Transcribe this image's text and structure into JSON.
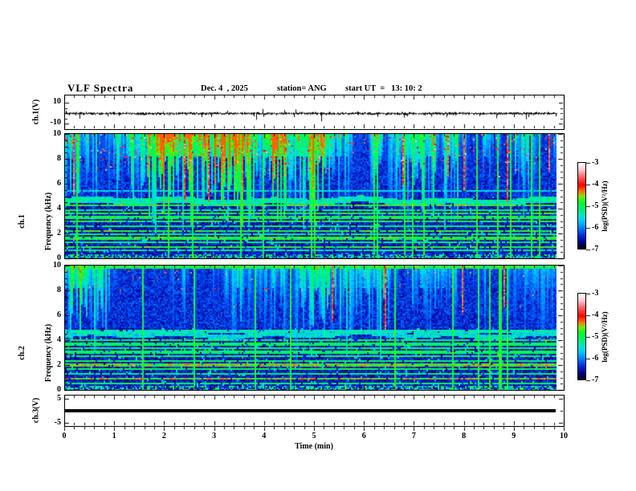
{
  "figure": {
    "bg": "#ffffff",
    "frame_color": "#000000"
  },
  "header": {
    "title": "VLF Spectra",
    "date": "Dec. 4  , 2025",
    "station": "station= ANG",
    "start_ut": "start UT  =   13: 10: 2"
  },
  "x_axis": {
    "label": "Time (min)",
    "min": 0,
    "max": 10,
    "major_ticks": [
      "0",
      "1",
      "2",
      "3",
      "4",
      "5",
      "6",
      "7",
      "8",
      "9",
      "10"
    ],
    "minor_step_min": 0.2,
    "data_end_min": 9.85
  },
  "panels": {
    "ch1_wave": {
      "ylabel": "ch.1(V)",
      "ymax_label": "10",
      "ymin_label": "-10",
      "ymin": -10,
      "ymax": 10
    },
    "spec1": {
      "ylabel_channel": "ch.1",
      "ylabel_axis": "Frequency (kHz)",
      "ytick_labels": [
        "10",
        "8",
        "6",
        "4",
        "2",
        "0"
      ],
      "ytick_values": [
        10,
        8,
        6,
        4,
        2,
        0
      ],
      "ymin": 0,
      "ymax": 10
    },
    "spec2": {
      "ylabel_channel": "ch.2",
      "ylabel_axis": "Frequency (kHz)",
      "ytick_labels": [
        "10",
        "8",
        "6",
        "4",
        "2",
        "0"
      ],
      "ytick_values": [
        10,
        8,
        6,
        4,
        2,
        0
      ],
      "ymin": 0,
      "ymax": 10
    },
    "ch3_wave": {
      "ylabel": "ch.3(V)",
      "ymax_label": "5",
      "ymin_label": "-5",
      "ymin": -5,
      "ymax": 5
    }
  },
  "colorbar": {
    "label": "log(PSD)(V²/Hz)",
    "tick_labels": [
      "-3",
      "-4",
      "-5",
      "-6",
      "-7"
    ],
    "max": -3,
    "min": -7,
    "stops": [
      [
        0,
        "#000010"
      ],
      [
        0.08,
        "#000090"
      ],
      [
        0.16,
        "#0030e0"
      ],
      [
        0.24,
        "#0080ff"
      ],
      [
        0.32,
        "#00c8ff"
      ],
      [
        0.38,
        "#00e8d0"
      ],
      [
        0.44,
        "#00f080"
      ],
      [
        0.54,
        "#00ff30"
      ],
      [
        0.61,
        "#80e800"
      ],
      [
        0.67,
        "#ff7000"
      ],
      [
        0.74,
        "#ff0000"
      ],
      [
        0.84,
        "#ff6868"
      ],
      [
        0.92,
        "#ffc8d8"
      ],
      [
        1,
        "#ffffff"
      ]
    ]
  },
  "chart_data": [
    {
      "type": "line",
      "name": "ch1_waveform",
      "xlabel": "Time (min)",
      "ylabel": "ch.1(V)",
      "xlim": [
        0,
        10
      ],
      "ylim": [
        -10,
        10
      ],
      "description": "broadband noise centered on 0 V, band about ±1.5 V, intermittent negative spikes",
      "seed": 4217,
      "noise_band_V": 1.5,
      "spikes": [
        {
          "t_min": 0.3,
          "v_V": -5
        },
        {
          "t_min": 2.95,
          "v_V": -3.5
        },
        {
          "t_min": 3.85,
          "v_V": -6
        },
        {
          "t_min": 4.6,
          "v_V": -3.5
        },
        {
          "t_min": 5.15,
          "v_V": -7.5
        },
        {
          "t_min": 7.35,
          "v_V": -3
        },
        {
          "t_min": 8.65,
          "v_V": -4.5
        },
        {
          "t_min": 9.0,
          "v_V": -3.5
        },
        {
          "t_min": 9.25,
          "v_V": -5.5
        }
      ]
    },
    {
      "type": "heatmap",
      "name": "ch1_spectrogram",
      "xlabel": "Time (min)",
      "ylabel": "ch.1 Frequency (kHz)",
      "xlim": [
        0,
        10
      ],
      "ylim": [
        0,
        10
      ],
      "zlabel": "log(PSD)(V²/Hz)",
      "zlim": [
        -7,
        -3
      ],
      "description": "dense sferic streaks 5-10 kHz (green/cyan with red flecks), dark 0-5 kHz band crossed by narrow horizontal emission lines and full-height vertical sferics",
      "render": {
        "seed": 20251204,
        "top_gain": 1.05,
        "strong_col_prob": 0.05,
        "red_col_prob": 0.022,
        "red_fleck_prob": 0.05,
        "top_edge_bright": false,
        "cyan_band": {
          "f": 4.62,
          "w": 0.5,
          "level": 0.4
        },
        "h_lines": [
          {
            "f": 0.62,
            "level": 0.45
          },
          {
            "f": 0.95,
            "level": 0.56
          },
          {
            "f": 1.3,
            "level": 0.5
          },
          {
            "f": 1.62,
            "level": 0.55
          },
          {
            "f": 1.92,
            "level": 0.5
          },
          {
            "f": 2.2,
            "level": 0.56
          },
          {
            "f": 2.55,
            "level": 0.5
          },
          {
            "f": 3.0,
            "level": 0.55
          },
          {
            "f": 3.32,
            "level": 0.52
          },
          {
            "f": 3.62,
            "level": 0.55
          },
          {
            "f": 3.88,
            "level": 0.5
          },
          {
            "f": 4.28,
            "level": 0.58
          },
          {
            "f": 5.5,
            "level": 0.35
          }
        ]
      }
    },
    {
      "type": "heatmap",
      "name": "ch2_spectrogram",
      "xlabel": "Time (min)",
      "ylabel": "ch.2 Frequency (kHz)",
      "xlim": [
        0,
        10
      ],
      "ylim": [
        0,
        10
      ],
      "zlabel": "log(PSD)(V²/Hz)",
      "zlim": [
        -7,
        -3
      ],
      "description": "similar to ch.1 but weaker: mostly blue with cyan/green sferic streaks, bright 10 kHz top edge, green horizontal lines below 5 kHz",
      "render": {
        "seed": 913577,
        "top_gain": 0.78,
        "strong_col_prob": 0.045,
        "red_col_prob": 0.006,
        "red_fleck_prob": 0.012,
        "top_edge_bright": true,
        "cyan_band": {
          "f": 4.45,
          "w": 0.4,
          "level": 0.36
        },
        "h_lines": [
          {
            "f": 0.55,
            "level": 0.5
          },
          {
            "f": 0.9,
            "level": 0.62
          },
          {
            "f": 1.3,
            "level": 0.5
          },
          {
            "f": 1.65,
            "level": 0.52
          },
          {
            "f": 2.0,
            "level": 0.6
          },
          {
            "f": 2.35,
            "level": 0.5
          },
          {
            "f": 2.7,
            "level": 0.52
          },
          {
            "f": 3.05,
            "level": 0.5
          },
          {
            "f": 3.4,
            "level": 0.52
          },
          {
            "f": 3.7,
            "level": 0.5
          },
          {
            "f": 4.05,
            "level": 0.52
          },
          {
            "f": 4.75,
            "level": 0.4
          }
        ]
      }
    },
    {
      "type": "line",
      "name": "ch3_waveform",
      "xlabel": "Time (min)",
      "ylabel": "ch.3(V)",
      "xlim": [
        0,
        10
      ],
      "ylim": [
        -5,
        5
      ],
      "description": "flat constant trace at 0 V drawn as a thick black bar",
      "constant_value_V": 0,
      "line_thickness_px": 4,
      "x_extent_min": [
        0,
        9.85
      ]
    }
  ]
}
